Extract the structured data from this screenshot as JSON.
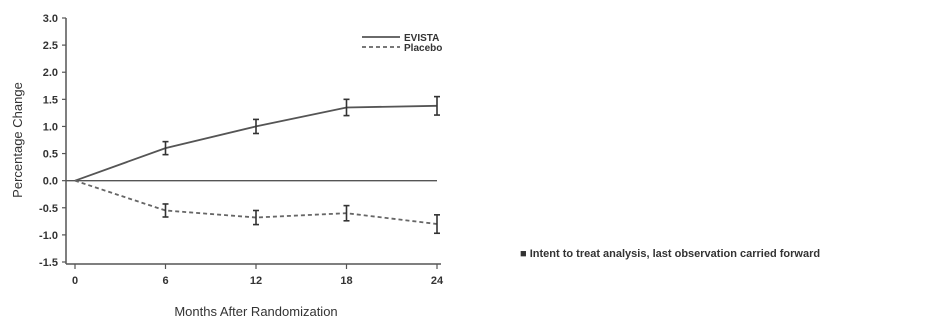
{
  "chart_data": {
    "type": "line",
    "xlabel": "Months After Randomization",
    "ylabel": "Percentage Change",
    "x": [
      0,
      6,
      12,
      18,
      24
    ],
    "xticks": [
      "0",
      "6",
      "12",
      "18",
      "24"
    ],
    "yticks": [
      "3.0",
      "2.5",
      "2.0",
      "1.5",
      "1.0",
      "0.5",
      "0.0",
      "-0.5",
      "-1.0",
      "-1.5"
    ],
    "xlim": [
      0,
      24
    ],
    "ylim": [
      -1.5,
      3.0
    ],
    "grid": false,
    "legend_position": "top-right",
    "series": [
      {
        "name": "EVISTA",
        "style": "solid",
        "color": "#555555",
        "values": [
          0.0,
          0.6,
          1.0,
          1.35,
          1.38
        ],
        "error": [
          0,
          0.12,
          0.13,
          0.15,
          0.17
        ]
      },
      {
        "name": "Placebo",
        "style": "dashed",
        "color": "#666666",
        "values": [
          0.0,
          -0.55,
          -0.68,
          -0.6,
          -0.8
        ],
        "error": [
          0,
          0.12,
          0.13,
          0.14,
          0.17
        ]
      }
    ]
  },
  "footnote": "Intent to treat analysis, last observation carried forward"
}
